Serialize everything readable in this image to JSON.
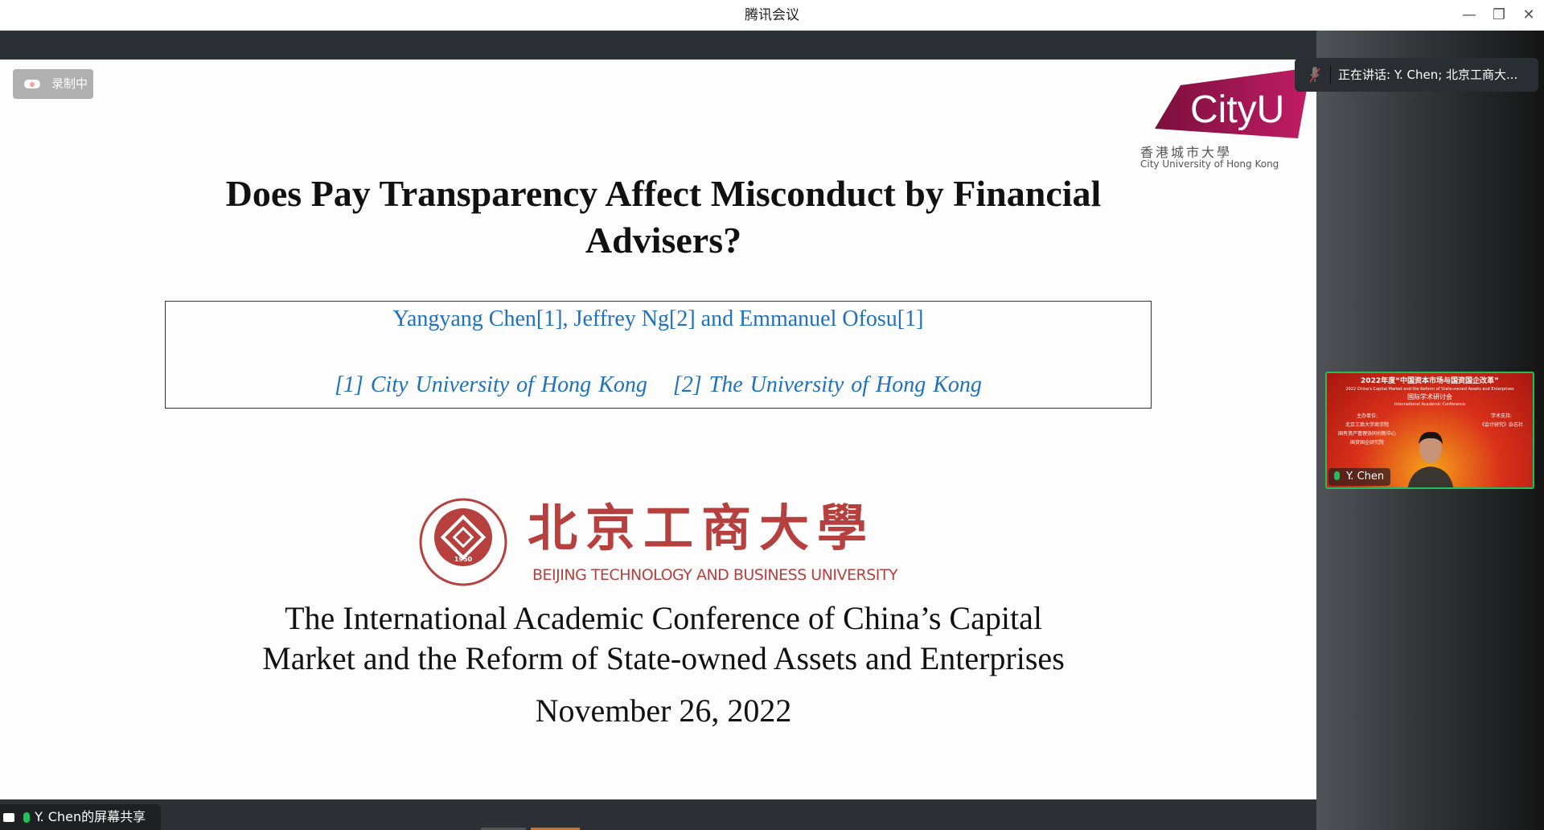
{
  "window": {
    "title": "腾讯会议",
    "controls": {
      "minimize": "—",
      "restore": "❐",
      "close": "✕"
    }
  },
  "recording": {
    "label": "录制中",
    "icon": "cloud-record-icon"
  },
  "slide": {
    "logo_cityu": {
      "wordmark": "CityU",
      "name_cn": "香港城市大學",
      "name_en": "City University of Hong Kong",
      "color": "#a0174f"
    },
    "title_lines": [
      "Does Pay Transparency Affect Misconduct by Financial",
      "Advisers?"
    ],
    "authors": "Yangyang Chen[1],  Jeffrey Ng[2] and  Emmanuel Ofosu[1]",
    "affiliations": [
      "[1] City University of Hong Kong",
      "[2] The University of Hong Kong"
    ],
    "logo_btbu": {
      "name_cn": "北京工商大學",
      "name_en": "BEIJING TECHNOLOGY AND BUSINESS UNIVERSITY",
      "seal_year": "1950",
      "color": "#b5403d"
    },
    "conference_lines": [
      "The International Academic Conference of China’s Capital",
      "Market and the Reform of State-owned Assets and Enterprises"
    ],
    "date": "November 26, 2022"
  },
  "speaking": {
    "label": "正在讲话: Y. Chen; 北京工商大..."
  },
  "video": {
    "participant": "Y. Chen",
    "bg_line1": "2022年度“中国资本市场与国资国企改革”",
    "bg_line2": "2022 China's Capital Market and the Reform of State-owned Assets and Enterprises",
    "bg_line3": "国际学术研讨会",
    "bg_line4": "International Academic Conference",
    "organizers": [
      "主办单位:",
      "北京工商大学商学院",
      "国有资产管理协同创新中心",
      "国资国企研究院"
    ],
    "support": [
      "学术支持:",
      "《会计研究》杂志社"
    ]
  },
  "share": {
    "label": "Y. Chen的屏幕共享"
  }
}
